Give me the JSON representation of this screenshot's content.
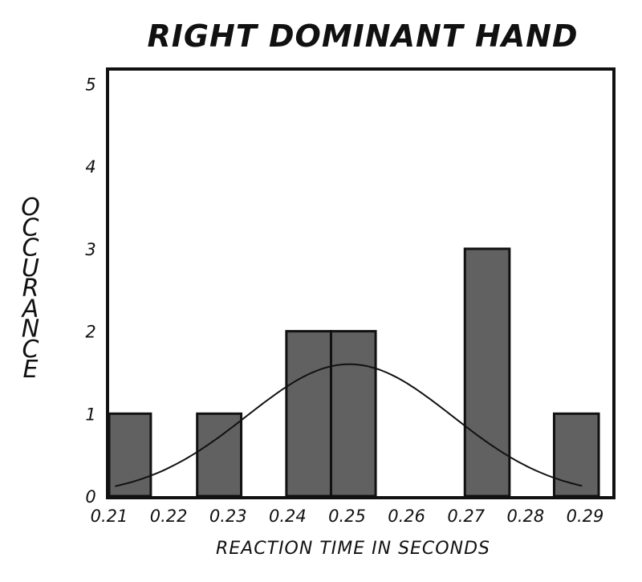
{
  "chart_data": {
    "type": "bar",
    "title": "RIGHT DOMINANT HAND",
    "xlabel": "REACTION TIME IN SECONDS",
    "ylabel": "OCCURANCE",
    "x_ticks": [
      "0.21",
      "0.22",
      "0.23",
      "0.24",
      "0.25",
      "0.26",
      "0.27",
      "0.28",
      "0.29"
    ],
    "y_ticks": [
      "0",
      "1",
      "2",
      "3",
      "4",
      "5"
    ],
    "xlim": [
      0.21,
      0.29
    ],
    "ylim": [
      0,
      5.2
    ],
    "bars": [
      {
        "x0": 0.21,
        "x1": 0.217,
        "value": 1
      },
      {
        "x0": 0.2248,
        "x1": 0.2322,
        "value": 1
      },
      {
        "x0": 0.2398,
        "x1": 0.2473,
        "value": 2
      },
      {
        "x0": 0.2473,
        "x1": 0.2548,
        "value": 2
      },
      {
        "x0": 0.2698,
        "x1": 0.2773,
        "value": 3
      },
      {
        "x0": 0.2848,
        "x1": 0.2923,
        "value": 1
      }
    ],
    "normal_curve": {
      "mean": 0.2504,
      "sd": 0.0173,
      "peak": 1.6
    },
    "colors": {
      "bar_fill": "#616161",
      "stroke": "#111111",
      "background": "#ffffff"
    },
    "grid": false,
    "legend": "none"
  }
}
